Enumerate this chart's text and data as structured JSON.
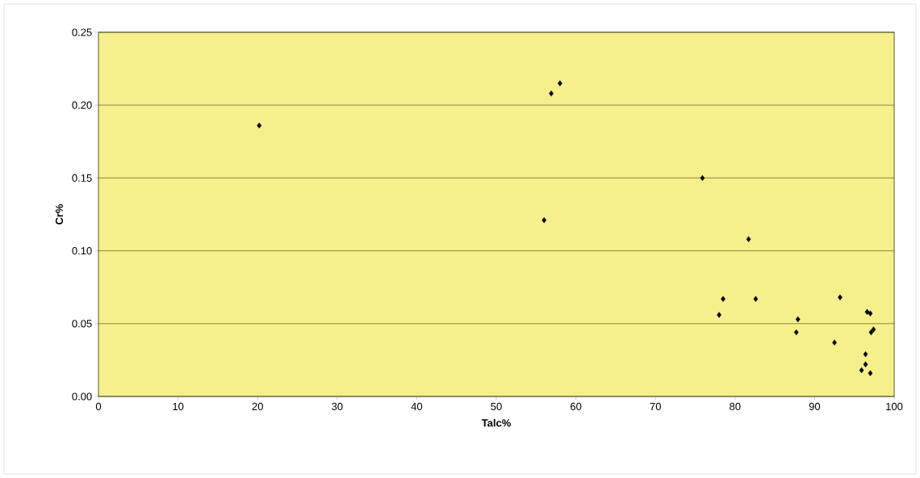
{
  "chart_data": {
    "type": "scatter",
    "xlabel": "Talc%",
    "ylabel": "Cr%",
    "x": [
      20.2,
      56.9,
      58.0,
      56.0,
      75.9,
      81.7,
      78.0,
      78.5,
      82.6,
      87.7,
      87.9,
      92.5,
      93.2,
      96.6,
      97.0,
      97.1,
      97.4,
      96.4,
      96.4,
      95.9,
      97.0
    ],
    "values": [
      0.186,
      0.208,
      0.215,
      0.121,
      0.15,
      0.108,
      0.056,
      0.067,
      0.067,
      0.044,
      0.053,
      0.037,
      0.068,
      0.058,
      0.057,
      0.044,
      0.046,
      0.029,
      0.022,
      0.018,
      0.016
    ],
    "color": "#000000",
    "marker": "diamond",
    "grid": "y",
    "xlim": [
      0,
      100
    ],
    "ylim": [
      0,
      0.25
    ],
    "xticks": [
      0,
      10,
      20,
      30,
      40,
      50,
      60,
      70,
      80,
      90,
      100
    ],
    "yticks": [
      {
        "value": 0,
        "label": "0.00"
      },
      0.05,
      {
        "value": 0.1,
        "label": "0.10"
      },
      0.15,
      {
        "value": 0.2,
        "label": "0.20"
      },
      0.25
    ]
  }
}
